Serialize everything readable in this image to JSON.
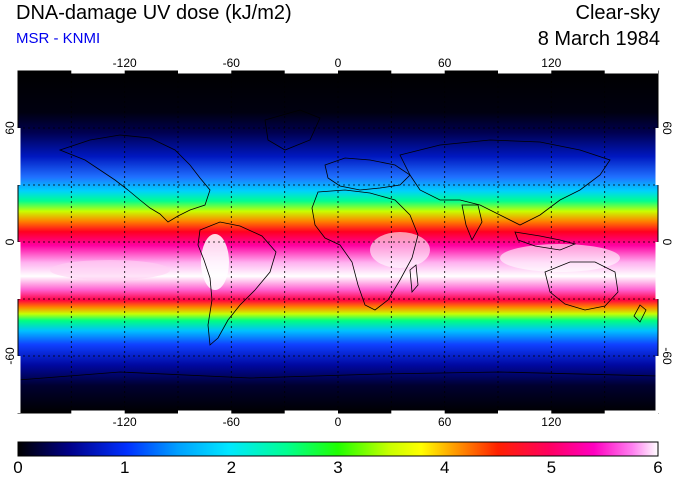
{
  "header": {
    "title": "DNA-damage UV dose (kJ/m2)",
    "subtitle": "MSR - KNMI",
    "sky_condition": "Clear-sky",
    "date": "8 March 1984"
  },
  "map": {
    "longitude_ticks": [
      {
        "label": "-120"
      },
      {
        "label": "-60"
      },
      {
        "label": "0"
      },
      {
        "label": "60"
      },
      {
        "label": "120"
      }
    ],
    "latitude_ticks": [
      {
        "label": "60"
      },
      {
        "label": "0"
      },
      {
        "label": "-60"
      }
    ],
    "lon_range": [
      -180,
      180
    ],
    "lat_range": [
      -90,
      90
    ],
    "grid_spacing_deg": 30,
    "field_description": "UV dose highest near equator/southern tropics (~5-6), decreasing poleward to ~0"
  },
  "colorbar": {
    "min": 0,
    "max": 6,
    "labels": [
      "0",
      "1",
      "2",
      "3",
      "4",
      "5",
      "6"
    ],
    "colors": [
      "#000000",
      "#000088",
      "#0030ff",
      "#00a0ff",
      "#00e8ff",
      "#00ff90",
      "#20ff00",
      "#c8ff00",
      "#ffff00",
      "#ffa000",
      "#ff2000",
      "#ff0060",
      "#ff00c0",
      "#ff80f0",
      "#ffffff"
    ]
  },
  "colors": {
    "title": "#000000",
    "subtitle": "#0000ee"
  }
}
